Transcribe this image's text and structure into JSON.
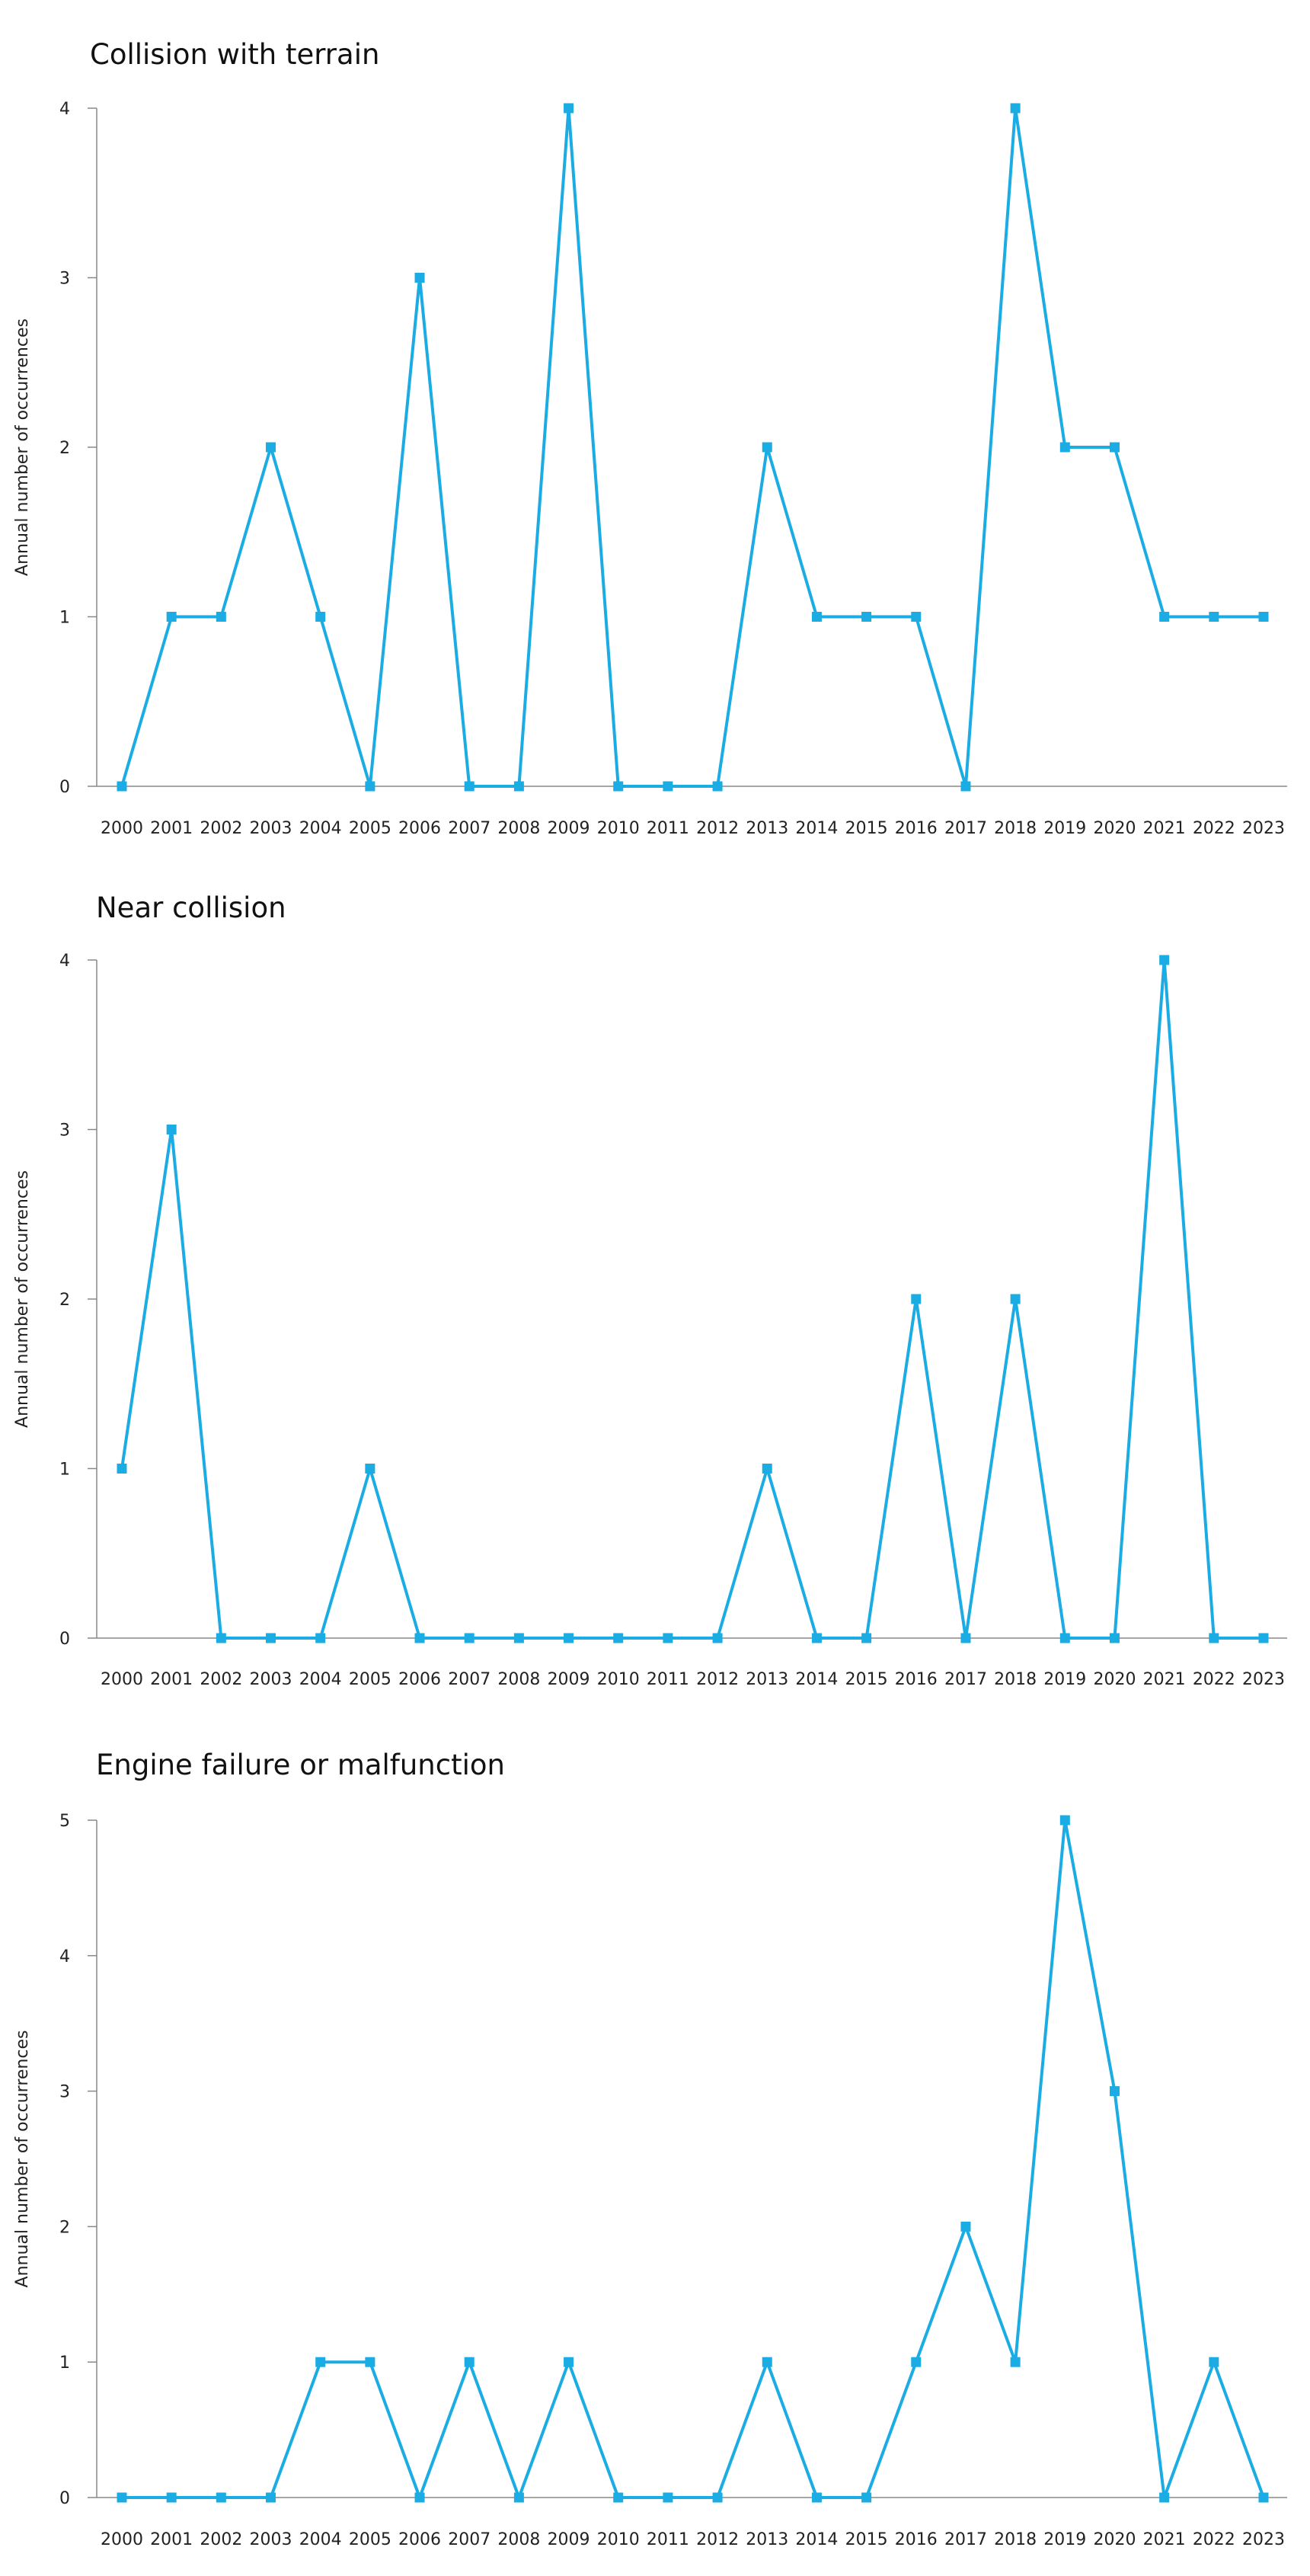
{
  "chart_data": [
    {
      "type": "line",
      "title": "Collision with terrain",
      "ylabel": "Annual number of occurrences",
      "xlabel": "",
      "ylim": [
        0,
        4
      ],
      "yticks": [
        0,
        1,
        2,
        3,
        4
      ],
      "grid": false,
      "color": "#1AACE3",
      "x": [
        "2000",
        "2001",
        "2002",
        "2003",
        "2004",
        "2005",
        "2006",
        "2007",
        "2008",
        "2009",
        "2010",
        "2011",
        "2012",
        "2013",
        "2014",
        "2015",
        "2016",
        "2017",
        "2018",
        "2019",
        "2020",
        "2021",
        "2022",
        "2023"
      ],
      "values": [
        0,
        1,
        1,
        2,
        1,
        0,
        3,
        0,
        0,
        4,
        0,
        0,
        0,
        2,
        1,
        1,
        1,
        0,
        4,
        2,
        2,
        1,
        1,
        1
      ]
    },
    {
      "type": "line",
      "title": "Near collision",
      "ylabel": "Annual number of occurrences",
      "xlabel": "",
      "ylim": [
        0,
        4
      ],
      "yticks": [
        0,
        1,
        2,
        3,
        4
      ],
      "grid": false,
      "color": "#1AACE3",
      "x": [
        "2000",
        "2001",
        "2002",
        "2003",
        "2004",
        "2005",
        "2006",
        "2007",
        "2008",
        "2009",
        "2010",
        "2011",
        "2012",
        "2013",
        "2014",
        "2015",
        "2016",
        "2017",
        "2018",
        "2019",
        "2020",
        "2021",
        "2022",
        "2023"
      ],
      "values": [
        1,
        3,
        0,
        0,
        0,
        1,
        0,
        0,
        0,
        0,
        0,
        0,
        0,
        1,
        0,
        0,
        2,
        0,
        2,
        0,
        0,
        4,
        0,
        0
      ]
    },
    {
      "type": "line",
      "title": "Engine failure or malfunction",
      "ylabel": "Annual number of occurrences",
      "xlabel": "",
      "ylim": [
        0,
        5
      ],
      "yticks": [
        0,
        1,
        2,
        3,
        4,
        5
      ],
      "grid": false,
      "color": "#1AACE3",
      "x": [
        "2000",
        "2001",
        "2002",
        "2003",
        "2004",
        "2005",
        "2006",
        "2007",
        "2008",
        "2009",
        "2010",
        "2011",
        "2012",
        "2013",
        "2014",
        "2015",
        "2016",
        "2017",
        "2018",
        "2019",
        "2020",
        "2021",
        "2022",
        "2023"
      ],
      "values": [
        0,
        0,
        0,
        0,
        1,
        1,
        0,
        1,
        0,
        1,
        0,
        0,
        0,
        1,
        0,
        0,
        1,
        2,
        1,
        5,
        3,
        0,
        1,
        0
      ]
    }
  ]
}
